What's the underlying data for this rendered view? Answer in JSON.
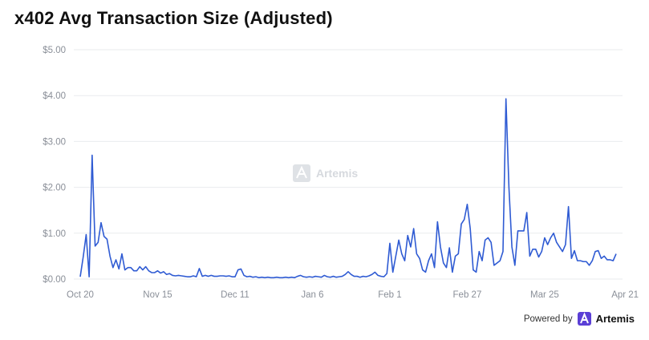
{
  "title": "x402 Avg Transaction Size (Adjusted)",
  "watermark": "Artemis",
  "footer": {
    "powered_by": "Powered by",
    "brand": "Artemis"
  },
  "colors": {
    "line": "#2f5bd3",
    "grid": "#e9ebee",
    "axis_text": "#8a8f98"
  },
  "chart_data": {
    "type": "line",
    "title": "x402 Avg Transaction Size (Adjusted)",
    "xlabel": "",
    "ylabel": "",
    "ylim": [
      0,
      5
    ],
    "grid": true,
    "y_ticks": [
      "$0.00",
      "$1.00",
      "$2.00",
      "$3.00",
      "$4.00",
      "$5.00"
    ],
    "y_tick_values": [
      0,
      1,
      2,
      3,
      4,
      5
    ],
    "x_ticks": [
      "Oct 20",
      "Nov 15",
      "Dec 11",
      "Jan 6",
      "Feb 1",
      "Feb 27",
      "Mar 25",
      "Apr 21"
    ],
    "x_tick_index": [
      0,
      26,
      52,
      78,
      104,
      130,
      156,
      183
    ],
    "series": [
      {
        "values": [
          0.05,
          0.48,
          0.97,
          0.05,
          2.7,
          0.72,
          0.8,
          1.23,
          0.93,
          0.87,
          0.5,
          0.25,
          0.42,
          0.22,
          0.55,
          0.2,
          0.25,
          0.25,
          0.18,
          0.18,
          0.27,
          0.2,
          0.27,
          0.18,
          0.14,
          0.14,
          0.18,
          0.13,
          0.16,
          0.1,
          0.12,
          0.08,
          0.07,
          0.08,
          0.07,
          0.06,
          0.05,
          0.05,
          0.07,
          0.05,
          0.23,
          0.06,
          0.08,
          0.06,
          0.08,
          0.06,
          0.06,
          0.07,
          0.07,
          0.06,
          0.07,
          0.05,
          0.05,
          0.2,
          0.22,
          0.08,
          0.05,
          0.06,
          0.04,
          0.05,
          0.03,
          0.04,
          0.03,
          0.04,
          0.03,
          0.03,
          0.04,
          0.03,
          0.03,
          0.04,
          0.03,
          0.04,
          0.03,
          0.06,
          0.08,
          0.05,
          0.04,
          0.05,
          0.04,
          0.06,
          0.05,
          0.04,
          0.08,
          0.05,
          0.04,
          0.06,
          0.04,
          0.05,
          0.06,
          0.1,
          0.16,
          0.1,
          0.06,
          0.06,
          0.04,
          0.06,
          0.05,
          0.07,
          0.1,
          0.15,
          0.08,
          0.06,
          0.05,
          0.12,
          0.78,
          0.15,
          0.5,
          0.85,
          0.55,
          0.4,
          0.95,
          0.7,
          1.1,
          0.55,
          0.45,
          0.2,
          0.15,
          0.4,
          0.55,
          0.25,
          1.25,
          0.7,
          0.35,
          0.25,
          0.68,
          0.15,
          0.5,
          0.55,
          1.2,
          1.3,
          1.63,
          1.1,
          0.2,
          0.15,
          0.6,
          0.4,
          0.85,
          0.9,
          0.8,
          0.3,
          0.35,
          0.4,
          0.6,
          3.93,
          2.0,
          0.7,
          0.3,
          1.05,
          1.05,
          1.05,
          1.45,
          0.5,
          0.65,
          0.65,
          0.48,
          0.6,
          0.9,
          0.75,
          0.9,
          1.0,
          0.8,
          0.7,
          0.6,
          0.75,
          1.58,
          0.45,
          0.62,
          0.4,
          0.4,
          0.38,
          0.38,
          0.3,
          0.4,
          0.6,
          0.62,
          0.45,
          0.5,
          0.42,
          0.42,
          0.4,
          0.55
        ]
      }
    ]
  }
}
